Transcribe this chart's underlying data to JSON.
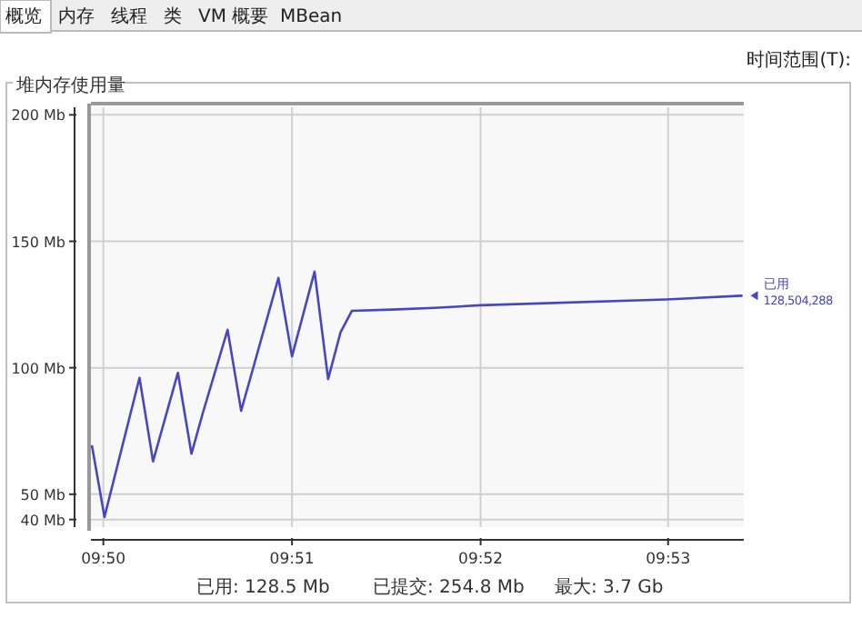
{
  "chart_data": {
    "type": "line",
    "title": "堆内存使用量",
    "x": [
      9.8323,
      9.8334,
      9.8365,
      9.8377,
      9.8399,
      9.8411,
      9.8421,
      9.8443,
      9.8455,
      9.8488,
      9.85,
      9.852,
      9.8532,
      9.8543,
      9.8553,
      9.8589,
      9.8626,
      9.8667,
      9.8831,
      9.8898
    ],
    "series": [
      {
        "color": "#4646c0",
        "values": [
          69,
          41,
          96,
          63,
          98,
          66,
          82,
          115,
          83,
          135.5,
          104.5,
          138,
          95.5,
          114,
          122.5,
          123,
          123.7,
          124.7,
          127,
          128.5
        ]
      }
    ],
    "xlim": [
      9.8322,
      9.89
    ],
    "xticks": [
      {
        "value": 9.8333,
        "label": "09:50"
      },
      {
        "value": 9.85,
        "label": "09:51"
      },
      {
        "value": 9.8667,
        "label": "09:52"
      },
      {
        "value": 9.8833,
        "label": "09:53"
      }
    ],
    "ylim": [
      37,
      203
    ],
    "yticks": [
      {
        "value": 40,
        "label": "40 Mb"
      },
      {
        "value": 50,
        "label": "50 Mb"
      },
      {
        "value": 100,
        "label": "100 Mb"
      },
      {
        "value": 150,
        "label": "150 Mb"
      },
      {
        "value": 200,
        "label": "200 Mb"
      }
    ],
    "grid": true,
    "annotations": [
      "概览",
      "内存",
      "线程",
      "类",
      "VM 概要",
      "MBean",
      "时间范围(T):",
      "已用: 128.5 Mb",
      "已提交: 254.8 Mb",
      "最大: 3.7 Gb",
      {
        "text": "已用",
        "x": 9.8898,
        "y": 128.5
      },
      {
        "text": "128,504,288",
        "x": 9.8898,
        "y": 128.5
      }
    ]
  }
}
